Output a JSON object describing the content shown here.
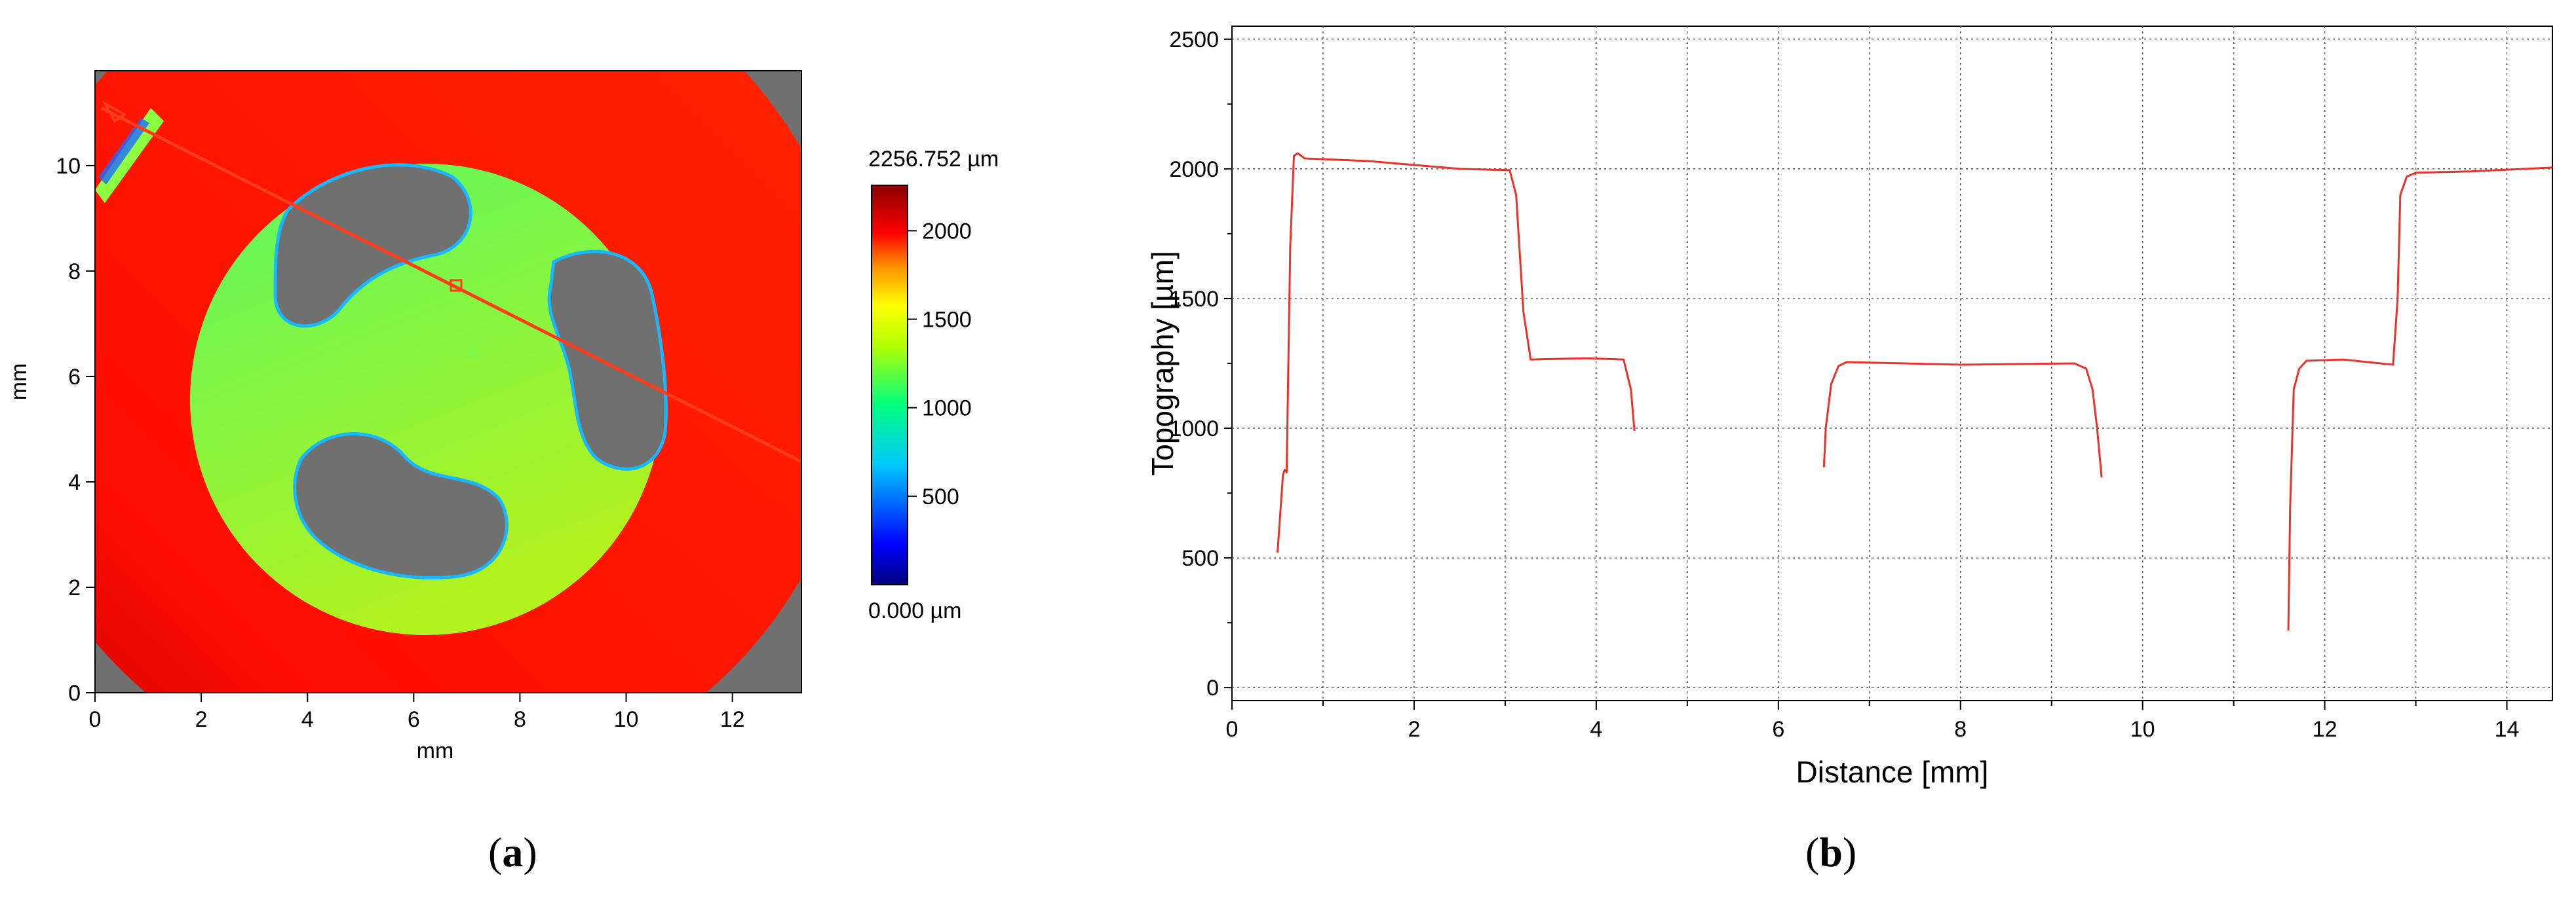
{
  "chart_data": [
    {
      "type": "heatmap",
      "panel": "a",
      "xlabel": "mm",
      "ylabel": "mm",
      "xlim": [
        0,
        13.3
      ],
      "ylim": [
        0,
        11.8
      ],
      "x_ticks": [
        0,
        2,
        4,
        6,
        8,
        10,
        12
      ],
      "y_ticks": [
        0,
        2,
        4,
        6,
        8,
        10
      ],
      "colorbar": {
        "max_label": "2256.752 µm",
        "min_label": "0.000 µm",
        "range": [
          0,
          2256.752
        ],
        "ticks": [
          500,
          1000,
          1500,
          2000
        ],
        "colormap": [
          "#00007f",
          "#0000ff",
          "#00c8ff",
          "#00ff80",
          "#b4ff00",
          "#ffff00",
          "#ff8c00",
          "#ff0000",
          "#8c0000"
        ]
      },
      "regions": {
        "outer_ring_um": 2050,
        "inner_disk_um": 1250,
        "pockets": "masked (gray)"
      },
      "profile_line": {
        "from": [
          0.3,
          11.0
        ],
        "to": [
          13.3,
          4.4
        ]
      },
      "colors": {
        "masked": "#707070",
        "ring": "#ff1a00",
        "disk": "#8fff30",
        "line": "#ff3b1a"
      }
    },
    {
      "type": "line",
      "panel": "b",
      "xlabel": "Distance [mm]",
      "ylabel": "Topography [µm]",
      "xlim": [
        0,
        14.5
      ],
      "ylim": [
        -50,
        2550
      ],
      "x_ticks": [
        0,
        2,
        4,
        6,
        8,
        10,
        12,
        14
      ],
      "y_ticks": [
        0,
        500,
        1000,
        1500,
        2000,
        2500
      ],
      "grid": true,
      "line_color": "#e8322a",
      "segments": [
        {
          "x": [
            0.5,
            0.56,
            0.58,
            0.6,
            0.64,
            0.68,
            0.72,
            0.8,
            1.5,
            2.5,
            3.05,
            3.12,
            3.2,
            3.28,
            3.9,
            4.3,
            4.38,
            4.42
          ],
          "y": [
            520,
            820,
            840,
            830,
            1700,
            2050,
            2060,
            2040,
            2030,
            2000,
            1995,
            1900,
            1450,
            1265,
            1270,
            1265,
            1150,
            990
          ]
        },
        {
          "x": [
            6.5,
            6.52,
            6.58,
            6.66,
            6.75,
            8.0,
            9.25,
            9.38,
            9.45,
            9.5,
            9.55
          ],
          "y": [
            850,
            1000,
            1170,
            1240,
            1255,
            1245,
            1250,
            1230,
            1150,
            1000,
            810
          ]
        },
        {
          "x": [
            11.6,
            11.62,
            11.66,
            11.72,
            11.8,
            12.2,
            12.75,
            12.8,
            12.83,
            12.9,
            13.0,
            13.6,
            14.2,
            14.5
          ],
          "y": [
            220,
            700,
            1150,
            1230,
            1260,
            1265,
            1245,
            1500,
            1900,
            1970,
            1985,
            1990,
            2000,
            2005
          ]
        }
      ]
    }
  ],
  "panel_labels": {
    "a": {
      "open": "(",
      "letter": "a",
      "close": ")"
    },
    "b": {
      "open": "(",
      "letter": "b",
      "close": ")"
    }
  }
}
